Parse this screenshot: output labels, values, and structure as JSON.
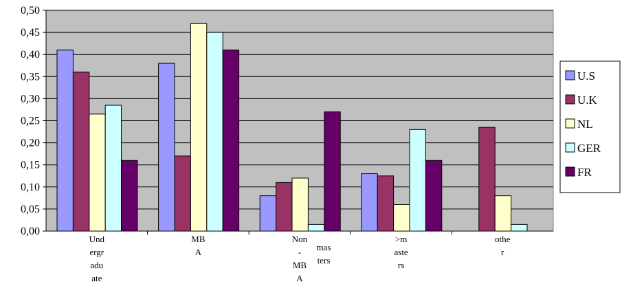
{
  "chart_data": {
    "type": "bar",
    "categories": [
      [
        "Und",
        "ergr",
        "adu",
        "ate"
      ],
      [
        "MB",
        "A"
      ],
      [
        "Non",
        "-",
        "MB",
        "A"
      ],
      [
        ">m",
        "aste",
        "rs"
      ],
      [
        "othe",
        "r"
      ]
    ],
    "extra_category_text": [
      "mas",
      "ters"
    ],
    "y_tick_labels": [
      "0,00",
      "0,05",
      "0,10",
      "0,15",
      "0,20",
      "0,25",
      "0,30",
      "0,35",
      "0,40",
      "0,45",
      "0,50"
    ],
    "ylim": [
      0,
      0.5
    ],
    "grid": true,
    "legend_position": "right",
    "series": [
      {
        "name": "U.S",
        "color": "#9999ff",
        "values": [
          0.41,
          0.38,
          0.08,
          0.13,
          null
        ]
      },
      {
        "name": "U.K",
        "color": "#993366",
        "values": [
          0.36,
          0.17,
          0.11,
          0.125,
          0.235
        ]
      },
      {
        "name": "NL",
        "color": "#ffffcc",
        "values": [
          0.265,
          0.47,
          0.12,
          0.06,
          0.08
        ]
      },
      {
        "name": "GER",
        "color": "#ccffff",
        "values": [
          0.285,
          0.45,
          0.015,
          0.23,
          0.015
        ]
      },
      {
        "name": "FR",
        "color": "#660066",
        "values": [
          0.16,
          0.41,
          0.27,
          0.16,
          null
        ]
      }
    ],
    "plot_background": "#c0c0c0"
  }
}
